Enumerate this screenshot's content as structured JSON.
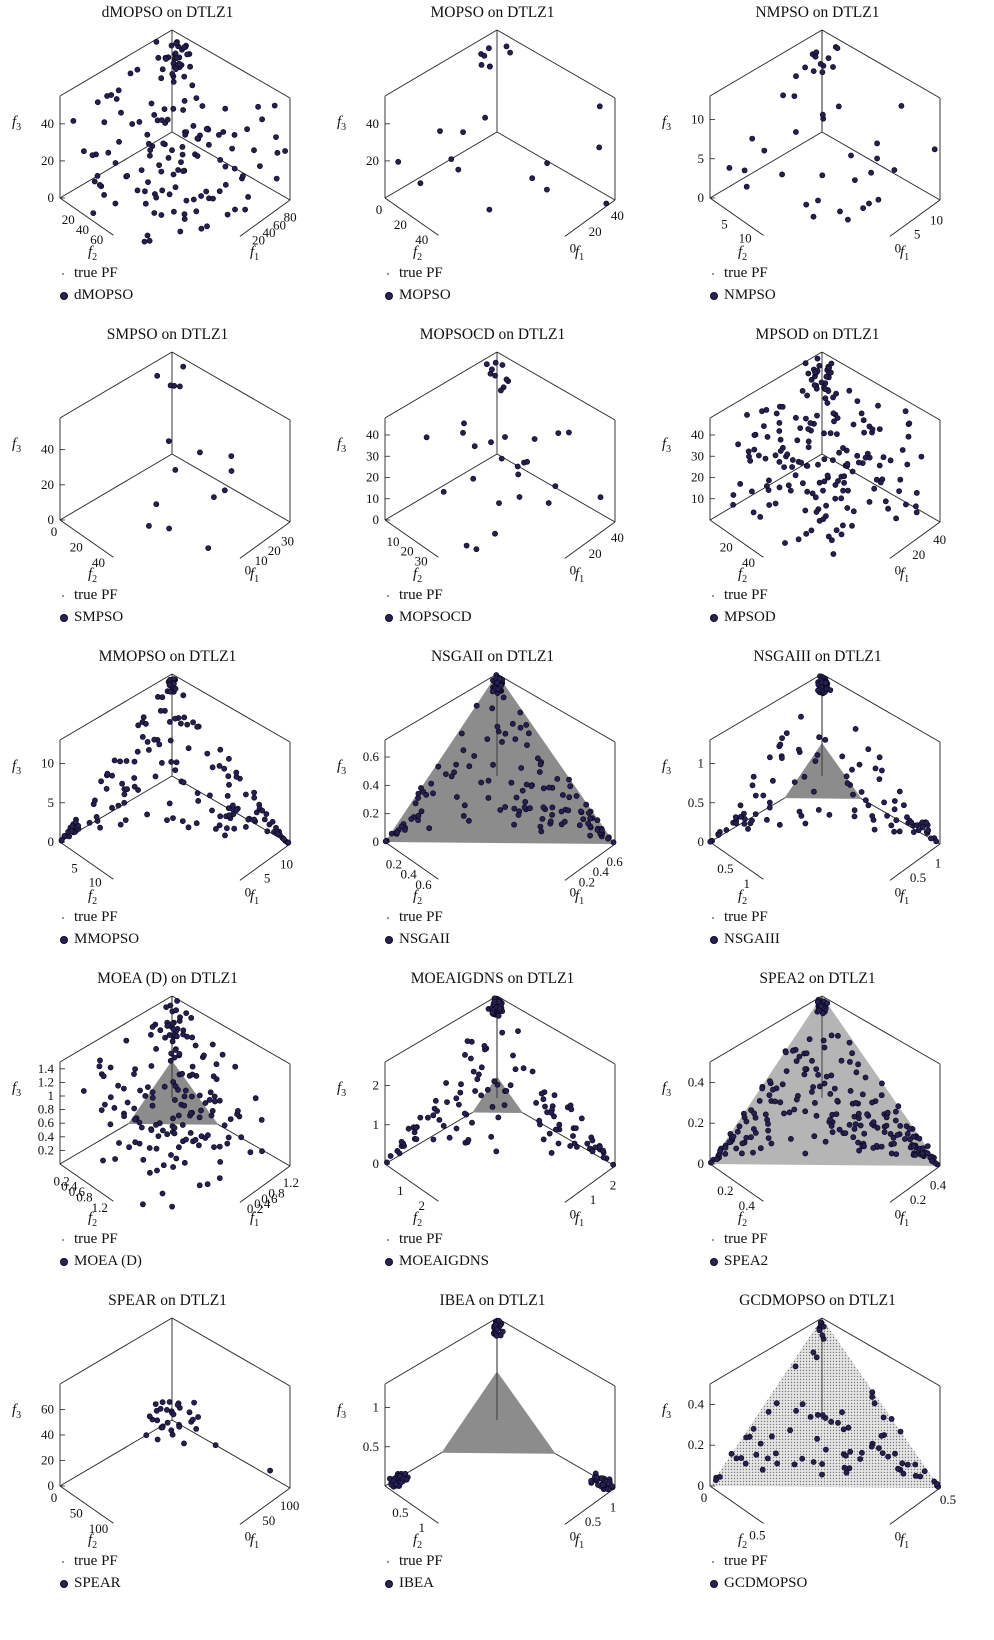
{
  "colors": {
    "point": "#26204f",
    "point_edge": "#05051c",
    "pf_fill": "#8c8c8c",
    "pf_fill_light": "#b5b5b5",
    "axis": "#222222"
  },
  "legend": {
    "true_pf": "true PF"
  },
  "chart_data": [
    {
      "type": "scatter",
      "title": "dMOPSO on DTLZ1",
      "legend": [
        "true PF",
        "dMOPSO"
      ],
      "series_name": "dMOPSO",
      "axes": {
        "f1": {
          "label": "f1",
          "ticks": [
            "20",
            "40",
            "60",
            "80"
          ],
          "max": 95
        },
        "f2": {
          "label": "f2",
          "ticks": [
            "20",
            "40",
            "60"
          ],
          "max": 75
        },
        "f3": {
          "label": "f3",
          "ticks": [
            "0",
            "20",
            "40"
          ],
          "max": 55
        }
      },
      "pf": {
        "show": false
      },
      "points": {
        "count": 160,
        "style": "spread",
        "pole": 0.18,
        "extent": 1.0,
        "seed": 11
      }
    },
    {
      "type": "scatter",
      "title": "MOPSO on DTLZ1",
      "legend": [
        "true PF",
        "MOPSO"
      ],
      "series_name": "MOPSO",
      "axes": {
        "f1": {
          "label": "f1",
          "ticks": [
            "0",
            "20",
            "40"
          ],
          "max": 45,
          "zero_end": true
        },
        "f2": {
          "label": "f2",
          "ticks": [
            "0",
            "20",
            "40"
          ],
          "max": 50
        },
        "f3": {
          "label": "f3",
          "ticks": [
            "20",
            "40"
          ],
          "max": 55
        }
      },
      "pf": {
        "show": false
      },
      "points": {
        "count": 22,
        "style": "spread",
        "pole": 0.3,
        "extent": 1.0,
        "seed": 23
      }
    },
    {
      "type": "scatter",
      "title": "NMPSO on DTLZ1",
      "legend": [
        "true PF",
        "NMPSO"
      ],
      "series_name": "NMPSO",
      "axes": {
        "f1": {
          "label": "f1",
          "ticks": [
            "0",
            "5",
            "10"
          ],
          "max": 13,
          "zero_end": true
        },
        "f2": {
          "label": "f2",
          "ticks": [
            "5",
            "10"
          ],
          "max": 13
        },
        "f3": {
          "label": "f3",
          "ticks": [
            "0",
            "5",
            "10"
          ],
          "max": 13
        }
      },
      "pf": {
        "show": true,
        "size": 0.05,
        "shade": "dark"
      },
      "points": {
        "count": 42,
        "style": "spread",
        "pole": 0.3,
        "extent": 1.0,
        "seed": 37
      }
    },
    {
      "type": "scatter",
      "title": "SMPSO on DTLZ1",
      "legend": [
        "true PF",
        "SMPSO"
      ],
      "series_name": "SMPSO",
      "axes": {
        "f1": {
          "label": "f1",
          "ticks": [
            "0",
            "10",
            "20",
            "30"
          ],
          "max": 38,
          "zero_end": true
        },
        "f2": {
          "label": "f2",
          "ticks": [
            "0",
            "20",
            "40"
          ],
          "max": 48
        },
        "f3": {
          "label": "f3",
          "ticks": [
            "0",
            "20",
            "40"
          ],
          "max": 58
        }
      },
      "pf": {
        "show": false
      },
      "points": {
        "count": 16,
        "style": "spread",
        "pole": 0.35,
        "extent": 0.9,
        "seed": 41
      }
    },
    {
      "type": "scatter",
      "title": "MOPSOCD on DTLZ1",
      "legend": [
        "true PF",
        "MOPSOCD"
      ],
      "series_name": "MOPSOCD",
      "axes": {
        "f1": {
          "label": "f1",
          "ticks": [
            "0",
            "20",
            "40"
          ],
          "max": 45,
          "zero_end": true
        },
        "f2": {
          "label": "f2",
          "ticks": [
            "10",
            "20",
            "30"
          ],
          "max": 38
        },
        "f3": {
          "label": "f3",
          "ticks": [
            "0",
            "10",
            "20",
            "30",
            "40"
          ],
          "max": 48
        }
      },
      "pf": {
        "show": false
      },
      "points": {
        "count": 34,
        "style": "spread",
        "pole": 0.25,
        "extent": 1.0,
        "seed": 53
      }
    },
    {
      "type": "scatter",
      "title": "MPSOD on DTLZ1",
      "legend": [
        "true PF",
        "MPSOD"
      ],
      "series_name": "MPSOD",
      "axes": {
        "f1": {
          "label": "f1",
          "ticks": [
            "0",
            "20",
            "40"
          ],
          "max": 48,
          "zero_end": true
        },
        "f2": {
          "label": "f2",
          "ticks": [
            "20",
            "40"
          ],
          "max": 48
        },
        "f3": {
          "label": "f3",
          "ticks": [
            "10",
            "20",
            "30",
            "40"
          ],
          "max": 48
        }
      },
      "pf": {
        "show": false
      },
      "points": {
        "count": 190,
        "style": "spread",
        "pole": 0.12,
        "extent": 0.9,
        "seed": 67
      }
    },
    {
      "type": "scatter",
      "title": "MMOPSO on DTLZ1",
      "legend": [
        "true PF",
        "MMOPSO"
      ],
      "series_name": "MMOPSO",
      "axes": {
        "f1": {
          "label": "f1",
          "ticks": [
            "0",
            "5",
            "10"
          ],
          "max": 13,
          "zero_end": true
        },
        "f2": {
          "label": "f2",
          "ticks": [
            "5",
            "10"
          ],
          "max": 13
        },
        "f3": {
          "label": "f3",
          "ticks": [
            "0",
            "5",
            "10"
          ],
          "max": 13
        }
      },
      "pf": {
        "show": false
      },
      "points": {
        "count": 170,
        "style": "planes",
        "pole": 0.2,
        "extent": 1.0,
        "seed": 71
      }
    },
    {
      "type": "scatter",
      "title": "NSGAII on DTLZ1",
      "legend": [
        "true PF",
        "NSGAII"
      ],
      "series_name": "NSGAII",
      "axes": {
        "f1": {
          "label": "f1",
          "ticks": [
            "0",
            "0.2",
            "0.4",
            "0.6"
          ],
          "max": 0.72,
          "zero_end": true
        },
        "f2": {
          "label": "f2",
          "ticks": [
            "0.2",
            "0.4",
            "0.6"
          ],
          "max": 0.72
        },
        "f3": {
          "label": "f3",
          "ticks": [
            "0",
            "0.2",
            "0.4",
            "0.6"
          ],
          "max": 0.72
        }
      },
      "pf": {
        "show": true,
        "size": 0.72,
        "shade": "dark"
      },
      "points": {
        "count": 170,
        "style": "planes",
        "pole": 0.25,
        "extent": 1.0,
        "seed": 83
      }
    },
    {
      "type": "scatter",
      "title": "NSGAIII on DTLZ1",
      "legend": [
        "true PF",
        "NSGAIII"
      ],
      "series_name": "NSGAIII",
      "axes": {
        "f1": {
          "label": "f1",
          "ticks": [
            "0",
            "0.5",
            "1"
          ],
          "max": 1.25,
          "zero_end": true
        },
        "f2": {
          "label": "f2",
          "ticks": [
            "0.5",
            "1"
          ],
          "max": 1.25
        },
        "f3": {
          "label": "f3",
          "ticks": [
            "0",
            "0.5",
            "1"
          ],
          "max": 1.3
        }
      },
      "pf": {
        "show": true,
        "size": 0.42,
        "shade": "dark"
      },
      "points": {
        "count": 160,
        "style": "planes",
        "pole": 0.3,
        "extent": 1.0,
        "seed": 97
      }
    },
    {
      "type": "scatter",
      "title": "MOEA (D) on DTLZ1",
      "legend": [
        "true PF",
        "MOEA (D)"
      ],
      "series_name": "MOEA (D)",
      "axes": {
        "f1": {
          "label": "f1",
          "ticks": [
            "0.2",
            "0.4",
            "0.6",
            "0.8",
            "1.2"
          ],
          "max": 1.4
        },
        "f2": {
          "label": "f2",
          "ticks": [
            "0.2",
            "0.4",
            "0.6",
            "0.8",
            "1.2"
          ],
          "max": 1.4
        },
        "f3": {
          "label": "f3",
          "ticks": [
            "0.2",
            "0.4",
            "0.6",
            "0.8",
            "1",
            "1.2",
            "1.4"
          ],
          "max": 1.5
        }
      },
      "pf": {
        "show": true,
        "size": 0.55,
        "shade": "dark"
      },
      "points": {
        "count": 170,
        "style": "spread",
        "pole": 0.15,
        "extent": 0.95,
        "seed": 101
      }
    },
    {
      "type": "scatter",
      "title": "MOEAIGDNS on DTLZ1",
      "legend": [
        "true PF",
        "MOEAIGDNS"
      ],
      "series_name": "MOEAIGDNS",
      "axes": {
        "f1": {
          "label": "f1",
          "ticks": [
            "0",
            "1",
            "2"
          ],
          "max": 2.5,
          "zero_end": true
        },
        "f2": {
          "label": "f2",
          "ticks": [
            "1",
            "2"
          ],
          "max": 2.5
        },
        "f3": {
          "label": "f3",
          "ticks": [
            "0",
            "1",
            "2"
          ],
          "max": 2.6
        }
      },
      "pf": {
        "show": true,
        "size": 0.55,
        "shade": "dark"
      },
      "points": {
        "count": 170,
        "style": "planes",
        "pole": 0.3,
        "extent": 1.0,
        "seed": 113
      }
    },
    {
      "type": "scatter",
      "title": "SPEA2 on DTLZ1",
      "legend": [
        "true PF",
        "SPEA2"
      ],
      "series_name": "SPEA2",
      "axes": {
        "f1": {
          "label": "f1",
          "ticks": [
            "0",
            "0.2",
            "0.4"
          ],
          "max": 0.5,
          "zero_end": true
        },
        "f2": {
          "label": "f2",
          "ticks": [
            "0.2",
            "0.4"
          ],
          "max": 0.5
        },
        "f3": {
          "label": "f3",
          "ticks": [
            "0",
            "0.2",
            "0.4"
          ],
          "max": 0.5
        }
      },
      "pf": {
        "show": true,
        "size": 0.5,
        "shade": "light"
      },
      "points": {
        "count": 230,
        "style": "planes",
        "pole": 0.2,
        "extent": 1.0,
        "seed": 127
      }
    },
    {
      "type": "scatter",
      "title": "SPEAR on DTLZ1",
      "legend": [
        "true PF",
        "SPEAR"
      ],
      "series_name": "SPEAR",
      "axes": {
        "f1": {
          "label": "f1",
          "ticks": [
            "0",
            "50",
            "100"
          ],
          "max": 120,
          "zero_end": true
        },
        "f2": {
          "label": "f2",
          "ticks": [
            "0",
            "50",
            "100"
          ],
          "max": 120
        },
        "f3": {
          "label": "f3",
          "ticks": [
            "0",
            "20",
            "40",
            "60"
          ],
          "max": 80
        }
      },
      "pf": {
        "show": false
      },
      "points": {
        "count": 34,
        "style": "core",
        "pole": 0.1,
        "extent": 0.5,
        "seed": 139
      }
    },
    {
      "type": "scatter",
      "title": "IBEA on DTLZ1",
      "legend": [
        "true PF",
        "IBEA"
      ],
      "series_name": "IBEA",
      "axes": {
        "f1": {
          "label": "f1",
          "ticks": [
            "0",
            "0.5",
            "1"
          ],
          "max": 1.25,
          "zero_end": true
        },
        "f2": {
          "label": "f2",
          "ticks": [
            "0.5",
            "1"
          ],
          "max": 1.25
        },
        "f3": {
          "label": "f3",
          "ticks": [
            "0.5",
            "1"
          ],
          "max": 1.3
        }
      },
      "pf": {
        "show": true,
        "size": 0.62,
        "shade": "dark"
      },
      "points": {
        "count": 90,
        "style": "corners",
        "pole": 0.08,
        "extent": 1.0,
        "seed": 149
      }
    },
    {
      "type": "scatter",
      "title": "GCDMOPSO on DTLZ1",
      "legend": [
        "true PF",
        "GCDMOPSO"
      ],
      "series_name": "GCDMOPSO",
      "axes": {
        "f1": {
          "label": "f1",
          "ticks": [
            "0",
            "0.5"
          ],
          "max": 0.5,
          "zero_end": true
        },
        "f2": {
          "label": "f2",
          "ticks": [
            "0",
            "0.5"
          ],
          "max": 0.5
        },
        "f3": {
          "label": "f3",
          "ticks": [
            "0",
            "0.2",
            "0.4"
          ],
          "max": 0.5
        }
      },
      "pf": {
        "show": true,
        "size": 0.5,
        "shade": "dotted"
      },
      "points": {
        "count": 85,
        "style": "planes",
        "pole": 0.15,
        "extent": 1.0,
        "seed": 151
      }
    }
  ]
}
